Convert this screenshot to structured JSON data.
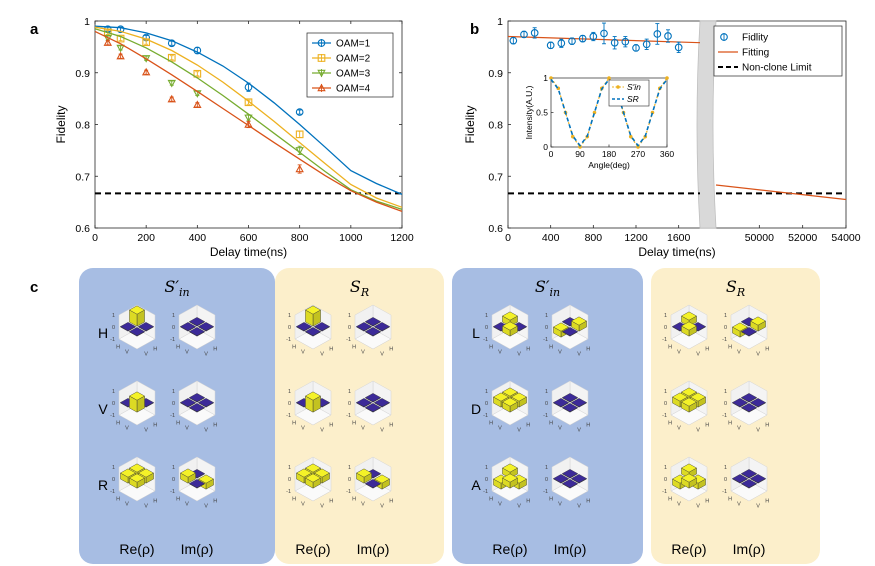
{
  "chart_data": [
    {
      "id": "a",
      "type": "line",
      "panel_label": "a",
      "xlabel": "Delay time(ns)",
      "ylabel": "Fidelity",
      "xlim": [
        0,
        1200
      ],
      "ylim": [
        0.6,
        1.0
      ],
      "xticks": [
        "0",
        "200",
        "400",
        "600",
        "800",
        "1000",
        "1200"
      ],
      "yticks": [
        "0.6",
        "0.7",
        "0.8",
        "0.9",
        "1"
      ],
      "legend_position": "top-right",
      "non_clone_limit": 0.667,
      "series": [
        {
          "name": "OAM=1",
          "color": "#0072BD",
          "marker": "circle",
          "x": [
            50,
            100,
            200,
            300,
            400,
            600,
            800
          ],
          "y": [
            0.984,
            0.984,
            0.968,
            0.957,
            0.943,
            0.872,
            0.824
          ],
          "err": [
            0.004,
            0.004,
            0.004,
            0.004,
            0.006,
            0.008,
            0.004
          ],
          "fit_x": [
            0,
            100,
            200,
            300,
            400,
            500,
            600,
            700,
            800,
            900,
            1000,
            1100,
            1200
          ],
          "fit_y": [
            0.99,
            0.987,
            0.977,
            0.962,
            0.94,
            0.913,
            0.88,
            0.842,
            0.8,
            0.756,
            0.711,
            0.686,
            0.665
          ]
        },
        {
          "name": "OAM=2",
          "color": "#EDB120",
          "marker": "square",
          "x": [
            50,
            100,
            200,
            300,
            400,
            600,
            800
          ],
          "y": [
            0.978,
            0.966,
            0.959,
            0.929,
            0.898,
            0.843,
            0.781
          ],
          "err": [
            0.004,
            0.004,
            0.004,
            0.004,
            0.004,
            0.004,
            0.006
          ],
          "fit_x": [
            0,
            100,
            200,
            300,
            400,
            500,
            600,
            700,
            800,
            900,
            1000,
            1100,
            1200
          ],
          "fit_y": [
            0.988,
            0.98,
            0.965,
            0.943,
            0.915,
            0.882,
            0.845,
            0.806,
            0.765,
            0.724,
            0.684,
            0.658,
            0.64
          ]
        },
        {
          "name": "OAM=3",
          "color": "#77AC30",
          "marker": "triangle-down",
          "x": [
            50,
            100,
            200,
            300,
            400,
            600,
            800
          ],
          "y": [
            0.967,
            0.948,
            0.928,
            0.88,
            0.86,
            0.813,
            0.75
          ],
          "err": [
            0.004,
            0.004,
            0.004,
            0.004,
            0.004,
            0.006,
            0.008
          ],
          "fit_x": [
            0,
            100,
            200,
            300,
            400,
            500,
            600,
            700,
            800,
            900,
            1000,
            1100,
            1200
          ],
          "fit_y": [
            0.985,
            0.97,
            0.948,
            0.921,
            0.89,
            0.856,
            0.82,
            0.783,
            0.746,
            0.709,
            0.674,
            0.652,
            0.636
          ]
        },
        {
          "name": "OAM=4",
          "color": "#D95319",
          "marker": "triangle-up",
          "x": [
            50,
            100,
            200,
            300,
            400,
            600,
            800
          ],
          "y": [
            0.958,
            0.932,
            0.901,
            0.849,
            0.838,
            0.8,
            0.714
          ],
          "err": [
            0.004,
            0.004,
            0.004,
            0.004,
            0.004,
            0.006,
            0.008
          ],
          "fit_x": [
            0,
            100,
            200,
            300,
            400,
            500,
            600,
            700,
            800,
            900,
            1000,
            1100,
            1200
          ],
          "fit_y": [
            0.98,
            0.956,
            0.927,
            0.896,
            0.864,
            0.831,
            0.798,
            0.765,
            0.733,
            0.701,
            0.672,
            0.65,
            0.632
          ]
        }
      ]
    },
    {
      "id": "b",
      "type": "scatter",
      "panel_label": "b",
      "xlabel": "Delay time(ns)",
      "ylabel": "Fidelity",
      "ylim": [
        0.6,
        1.0
      ],
      "xticks_left": [
        "0",
        "400",
        "800",
        "1200",
        "1600"
      ],
      "xticks_right": [
        "50000",
        "52000",
        "54000"
      ],
      "yticks": [
        "0.6",
        "0.7",
        "0.8",
        "0.9",
        "1"
      ],
      "broken_axis": {
        "left_range": [
          0,
          1800
        ],
        "right_range": [
          48000,
          54000
        ]
      },
      "legend": [
        "Fidlity",
        "Fitting",
        "Non-clone Limit"
      ],
      "legend_position": "top-right",
      "non_clone_limit": 0.667,
      "fidelity": {
        "x": [
          50,
          150,
          250,
          400,
          500,
          600,
          700,
          800,
          900,
          1000,
          1100,
          1200,
          1300,
          1400,
          1500,
          1600
        ],
        "y": [
          0.962,
          0.974,
          0.977,
          0.953,
          0.957,
          0.961,
          0.966,
          0.97,
          0.976,
          0.958,
          0.96,
          0.948,
          0.955,
          0.975,
          0.971,
          0.949
        ],
        "err": [
          0.006,
          0.006,
          0.01,
          0.006,
          0.008,
          0.006,
          0.006,
          0.008,
          0.02,
          0.012,
          0.01,
          0.006,
          0.01,
          0.02,
          0.012,
          0.01
        ],
        "color": "#0072BD"
      },
      "fitting": {
        "left_x": [
          0,
          1800
        ],
        "left_y": [
          0.97,
          0.958
        ],
        "right_x": [
          48000,
          54000
        ],
        "right_y": [
          0.683,
          0.655
        ],
        "color": "#D95319"
      },
      "inset": {
        "type": "line",
        "xlabel": "Angle(deg)",
        "ylabel": "Intensity(A.U.)",
        "xlim": [
          0,
          360
        ],
        "ylim": [
          0,
          1
        ],
        "xticks": [
          "0",
          "90",
          "180",
          "270",
          "360"
        ],
        "yticks": [
          "0",
          "0.5",
          "1"
        ],
        "legend": [
          "S'in",
          "SR"
        ],
        "s_in": {
          "x": [
            0,
            22.5,
            45,
            67.5,
            90,
            112.5,
            135,
            157.5,
            180,
            202.5,
            225,
            247.5,
            270,
            292.5,
            315,
            337.5,
            360
          ],
          "y": [
            1,
            0.85,
            0.5,
            0.15,
            0.0,
            0.15,
            0.5,
            0.85,
            1,
            0.85,
            0.5,
            0.15,
            0.0,
            0.15,
            0.5,
            0.85,
            1
          ],
          "color": "#EDB120"
        },
        "s_r": {
          "x": [
            0,
            22.5,
            45,
            67.5,
            90,
            112.5,
            135,
            157.5,
            180,
            202.5,
            225,
            247.5,
            270,
            292.5,
            315,
            337.5,
            360
          ],
          "y": [
            0.98,
            0.84,
            0.5,
            0.16,
            0.02,
            0.16,
            0.5,
            0.84,
            0.98,
            0.84,
            0.5,
            0.16,
            0.02,
            0.16,
            0.5,
            0.84,
            0.98
          ],
          "color": "#0072BD"
        }
      }
    },
    {
      "id": "c",
      "type": "bar3d-grid",
      "panel_label": "c",
      "groups": [
        {
          "title_base": "S",
          "title_sup": "′",
          "title_sub": "in",
          "bg": "#A7BDE3",
          "rows": [
            "H",
            "V",
            "R"
          ]
        },
        {
          "title_base": "S",
          "title_sup": "",
          "title_sub": "R",
          "bg": "#FCEFCB",
          "rows": [
            "H",
            "V",
            "R"
          ]
        },
        {
          "title_base": "S",
          "title_sup": "′",
          "title_sub": "in",
          "bg": "#A7BDE3",
          "rows": [
            "L",
            "D",
            "A"
          ]
        },
        {
          "title_base": "S",
          "title_sup": "",
          "title_sub": "R",
          "bg": "#FCEFCB",
          "rows": [
            "L",
            "D",
            "A"
          ]
        }
      ],
      "column_captions": [
        "Re(ρ)",
        "Im(ρ)"
      ],
      "basis_labels": [
        "H",
        "V"
      ],
      "ztick_labels": [
        "1",
        "0",
        "-1"
      ],
      "bar_colors": {
        "positive": "#F4F228",
        "zero": "#3C2A98"
      },
      "matrices": {
        "H": {
          "re": [
            [
              1,
              0
            ],
            [
              0,
              0
            ]
          ],
          "im": [
            [
              0,
              0
            ],
            [
              0,
              0
            ]
          ]
        },
        "V": {
          "re": [
            [
              0,
              0
            ],
            [
              0,
              1
            ]
          ],
          "im": [
            [
              0,
              0
            ],
            [
              0,
              0
            ]
          ]
        },
        "R": {
          "re": [
            [
              0.5,
              0.5
            ],
            [
              0.5,
              0.5
            ]
          ],
          "im": [
            [
              0,
              -0.5
            ],
            [
              0.5,
              0
            ]
          ]
        },
        "L": {
          "re": [
            [
              0.5,
              0
            ],
            [
              0,
              0.5
            ]
          ],
          "im": [
            [
              0,
              0.5
            ],
            [
              -0.5,
              0
            ]
          ]
        },
        "D": {
          "re": [
            [
              0.5,
              0.5
            ],
            [
              0.5,
              0.5
            ]
          ],
          "im": [
            [
              0,
              0
            ],
            [
              0,
              0
            ]
          ]
        },
        "A": {
          "re": [
            [
              0.5,
              -0.5
            ],
            [
              -0.5,
              0.5
            ]
          ],
          "im": [
            [
              0,
              0
            ],
            [
              0,
              0
            ]
          ]
        }
      }
    }
  ],
  "labels": {
    "a": "a",
    "b": "b",
    "c": "c"
  }
}
